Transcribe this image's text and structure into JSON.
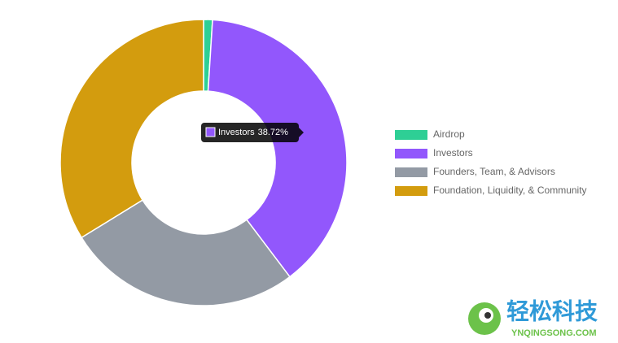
{
  "chart_data": {
    "type": "doughnut",
    "categories": [
      "Airdrop",
      "Investors",
      "Founders, Team, & Advisors",
      "Foundation, Liquidity, & Community"
    ],
    "values": [
      1,
      38.72,
      26.5,
      33.78
    ],
    "value_labels": [
      null,
      "38.72%",
      null,
      null
    ],
    "colors": [
      "#2ecf95",
      "#9257fc",
      "#939aa4",
      "#d39c0e"
    ],
    "legend": "right",
    "tooltip_index": 1
  },
  "watermark": {
    "title": "轻松科技",
    "subtitle": "YNQINGSONG.COM"
  }
}
